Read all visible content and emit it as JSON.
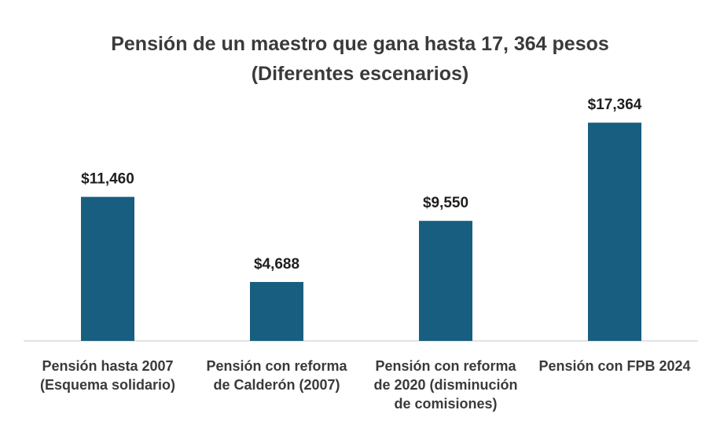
{
  "chart_data": {
    "type": "bar",
    "title": "Pensión de un maestro que gana hasta 17, 364 pesos",
    "subtitle": "(Diferentes escenarios)",
    "categories": [
      [
        "Pensión hasta 2007",
        "(Esquema solidario)"
      ],
      [
        "Pensión con reforma",
        "de Calderón (2007)"
      ],
      [
        "Pensión con reforma",
        "de 2020 (disminución",
        "de comisiones)"
      ],
      [
        "Pensión con FPB 2024"
      ]
    ],
    "values": [
      11460,
      4688,
      9550,
      17364
    ],
    "data_labels": [
      "$11,460",
      "$4,688",
      "$9,550",
      "$17,364"
    ],
    "xlabel": "",
    "ylabel": "",
    "ylim": [
      0,
      19000
    ],
    "grid": false,
    "legend": "none",
    "bar_color": "#185E80",
    "axis_color": "#d9d9d9"
  }
}
